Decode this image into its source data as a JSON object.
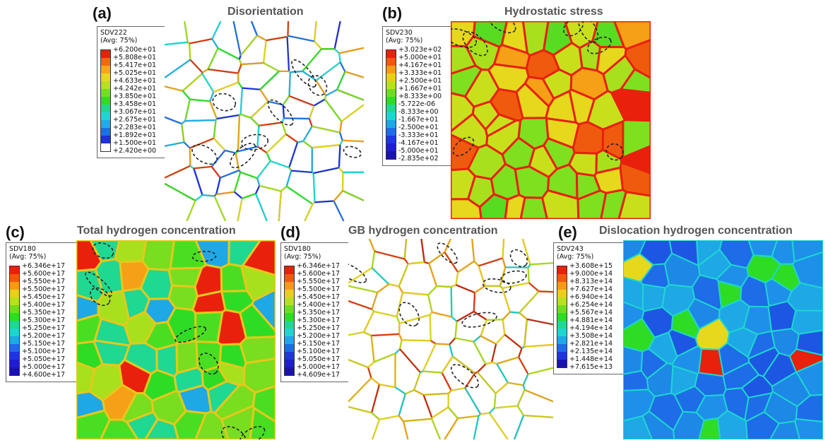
{
  "panels": [
    {
      "letter": "(a)",
      "title": "Disorientation",
      "legend": {
        "var": "SDV222",
        "avg": "(Avg: 75%)",
        "values": [
          "+6.200e+01",
          "+5.808e+01",
          "+5.417e+01",
          "+5.025e+01",
          "+4.633e+01",
          "+4.242e+01",
          "+3.850e+01",
          "+3.458e+01",
          "+3.067e+01",
          "+2.675e+01",
          "+2.283e+01",
          "+1.892e+01",
          "+1.500e+01",
          "+2.420e+00"
        ],
        "colors": [
          "#e8200c",
          "#f06a10",
          "#f5a818",
          "#e6d81c",
          "#b8e01e",
          "#74df1f",
          "#2edc25",
          "#1fd88e",
          "#1ed6d0",
          "#1eaee6",
          "#1e6fe8",
          "#1e2fe0",
          "#ffffff"
        ]
      }
    },
    {
      "letter": "(b)",
      "title": "Hydrostatic stress",
      "legend": {
        "var": "SDV230",
        "avg": "(Avg: 75%)",
        "values": [
          "+3.023e+02",
          "+5.000e+01",
          "+4.167e+01",
          "+3.333e+01",
          "+2.500e+01",
          "+1.667e+01",
          "+8.333e+00",
          "-5.722e-06",
          "-8.333e+00",
          "-1.667e+01",
          "-2.500e+01",
          "-3.333e+01",
          "-4.167e+01",
          "-5.000e+01",
          "-2.835e+02"
        ],
        "colors": [
          "#e8200c",
          "#f0580f",
          "#f59a16",
          "#e9cf1c",
          "#b7e01e",
          "#6fdd1f",
          "#2edc25",
          "#1fd892",
          "#1ed6d0",
          "#1ea8e6",
          "#1e6ce8",
          "#1e36e0",
          "#1e1ed0",
          "#1a12b0"
        ]
      }
    },
    {
      "letter": "(c)",
      "title": "Total hydrogen concentration",
      "legend": {
        "var": "SDV180",
        "avg": "(Avg: 75%)",
        "values": [
          "+6.346e+17",
          "+5.600e+17",
          "+5.550e+17",
          "+5.500e+17",
          "+5.450e+17",
          "+5.400e+17",
          "+5.350e+17",
          "+5.300e+17",
          "+5.250e+17",
          "+5.200e+17",
          "+5.150e+17",
          "+5.100e+17",
          "+5.050e+17",
          "+5.000e+17",
          "+4.600e+17"
        ],
        "colors": [
          "#e8200c",
          "#f0580f",
          "#f59a16",
          "#e9cf1c",
          "#b7e01e",
          "#6fdd1f",
          "#2edc25",
          "#1fd892",
          "#1ed6d0",
          "#1ea8e6",
          "#1e6ce8",
          "#1e36e0",
          "#1e1ed0",
          "#1a12b0"
        ]
      }
    },
    {
      "letter": "(d)",
      "title": "GB hydrogen concentration",
      "legend": {
        "var": "SDV180",
        "avg": "(Avg: 75%)",
        "values": [
          "+6.346e+17",
          "+5.600e+17",
          "+5.550e+17",
          "+5.500e+17",
          "+5.450e+17",
          "+5.400e+17",
          "+5.350e+17",
          "+5.300e+17",
          "+5.250e+17",
          "+5.200e+17",
          "+5.150e+17",
          "+5.100e+17",
          "+5.050e+17",
          "+5.000e+17",
          "+4.609e+17"
        ],
        "colors": [
          "#e8200c",
          "#f0580f",
          "#f59a16",
          "#e9cf1c",
          "#b7e01e",
          "#6fdd1f",
          "#2edc25",
          "#1fd892",
          "#1ed6d0",
          "#1ea8e6",
          "#1e6ce8",
          "#1e36e0",
          "#1e1ed0",
          "#1a12b0"
        ]
      }
    },
    {
      "letter": "(e)",
      "title": "Dislocation  hydrogen concentration",
      "legend": {
        "var": "SDV243",
        "avg": "(Avg: 75%)",
        "values": [
          "+3.608e+15",
          "+9.000e+14",
          "+8.313e+14",
          "+7.627e+14",
          "+6.940e+14",
          "+6.254e+14",
          "+5.567e+14",
          "+4.881e+14",
          "+4.194e+14",
          "+3.508e+14",
          "+2.821e+14",
          "+2.135e+14",
          "+1.448e+14",
          "+7.615e+13"
        ],
        "colors": [
          "#e8200c",
          "#f0580f",
          "#f59a16",
          "#e9cf1c",
          "#b7e01e",
          "#6fdd1f",
          "#2edc25",
          "#1fd892",
          "#1ed6d0",
          "#1ea8e6",
          "#1e6ce8",
          "#1e36e0",
          "#1a12b0"
        ]
      }
    }
  ]
}
